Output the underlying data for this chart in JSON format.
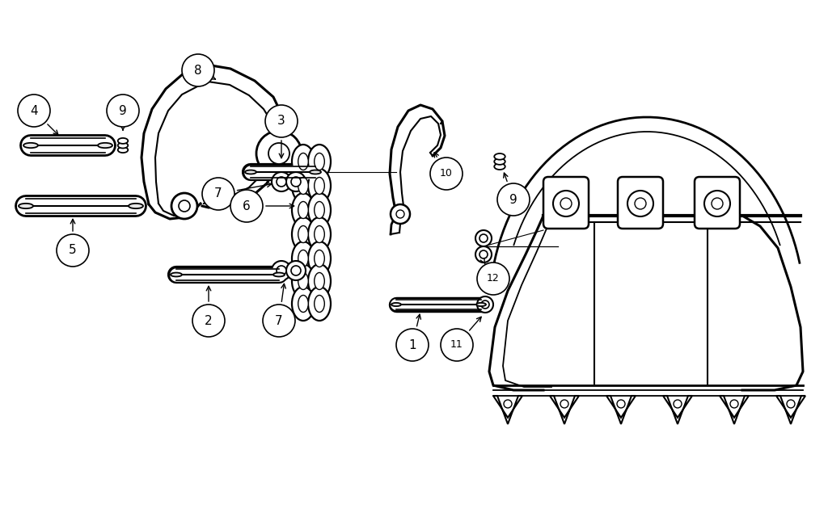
{
  "bg_color": "#ffffff",
  "line_color": "#000000",
  "figsize": [
    10.24,
    6.45
  ],
  "dpi": 100,
  "label_r": 0.022
}
